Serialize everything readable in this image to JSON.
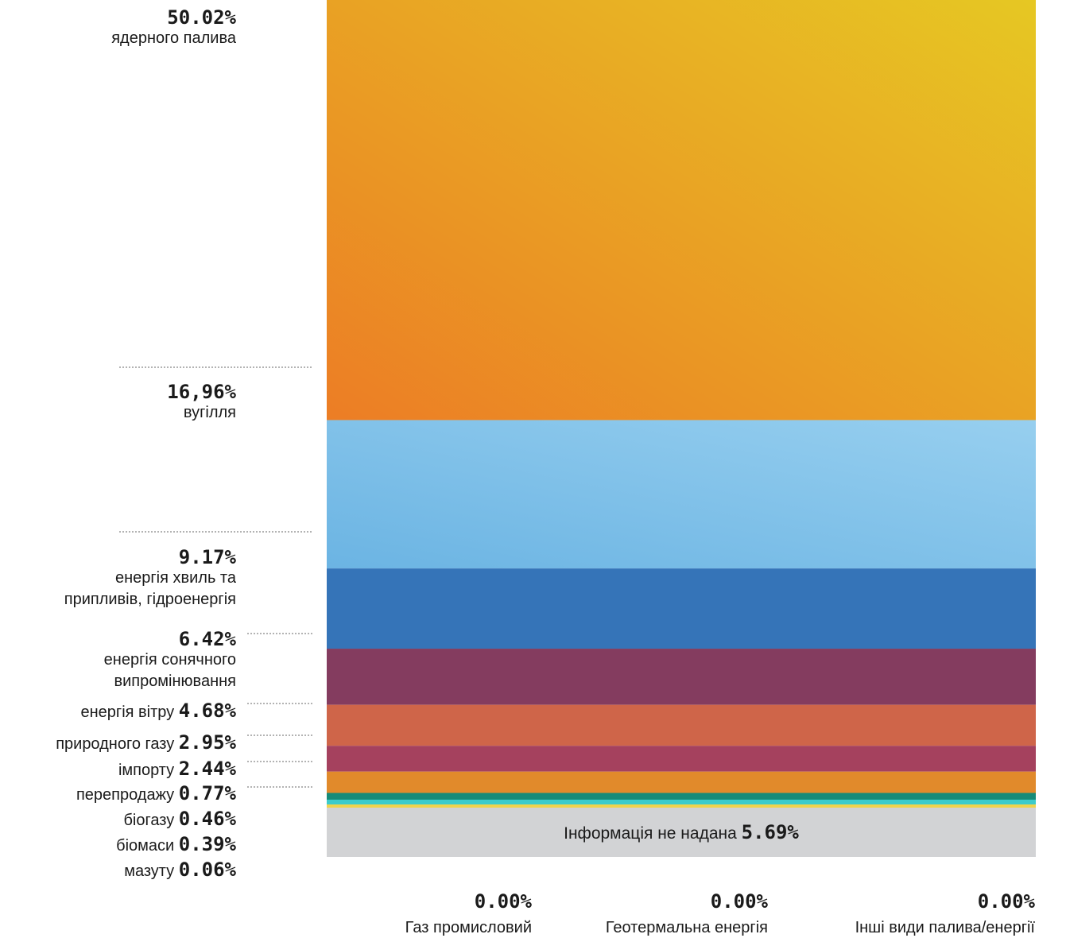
{
  "chart_data": {
    "type": "bar",
    "stacked": true,
    "unit": "%",
    "series": [
      {
        "pct_text": "50.02%",
        "value": 50.02,
        "label_lines": [
          "ядерного палива"
        ],
        "label_style": "stacked",
        "gradient": [
          "#ec7d25",
          "#e6c923"
        ]
      },
      {
        "pct_text": "16,96%",
        "value": 16.96,
        "label_lines": [
          "вугілля"
        ],
        "label_style": "stacked",
        "gradient": [
          "#6bb4e3",
          "#97cfef"
        ]
      },
      {
        "pct_text": "9.17%",
        "value": 9.17,
        "label_lines": [
          "енергія хвиль та",
          "припливів, гідроенергія"
        ],
        "label_style": "stacked",
        "color": "#3574b8"
      },
      {
        "pct_text": "6.42%",
        "value": 6.42,
        "label_lines": [
          "енергія сонячного",
          "випромінювання"
        ],
        "label_style": "stacked",
        "color": "#843c5f"
      },
      {
        "pct_text": "4.68%",
        "value": 4.68,
        "label_lines": [
          "енергія вітру"
        ],
        "label_style": "inline",
        "color": "#cf6549"
      },
      {
        "pct_text": "2.95%",
        "value": 2.95,
        "label_lines": [
          "природного газу"
        ],
        "label_style": "inline",
        "color": "#a5415e"
      },
      {
        "pct_text": "2.44%",
        "value": 2.44,
        "label_lines": [
          "імпорту"
        ],
        "label_style": "inline",
        "color": "#e18a2b"
      },
      {
        "pct_text": "0.77%",
        "value": 0.77,
        "label_lines": [
          "перепродажу"
        ],
        "label_style": "inline",
        "color": "#168b78"
      },
      {
        "pct_text": "0.46%",
        "value": 0.46,
        "label_lines": [
          "біогазу"
        ],
        "label_style": "inline",
        "color": "#3ccbcb"
      },
      {
        "pct_text": "0.39%",
        "value": 0.39,
        "label_lines": [
          "біомаси"
        ],
        "label_style": "inline",
        "color": "#f0d34c"
      },
      {
        "pct_text": "0.06%",
        "value": 0.06,
        "label_lines": [
          "мазуту"
        ],
        "label_style": "inline",
        "color": "#5cb85c"
      }
    ],
    "not_provided": {
      "label": "Інформація не надана",
      "pct_text": "5.69%",
      "value": 5.69,
      "color": "#d2d3d5"
    },
    "zero_items": [
      {
        "pct_text": "0.00%",
        "label": "Газ промисловий"
      },
      {
        "pct_text": "0.00%",
        "label": "Геотермальна енергія"
      },
      {
        "pct_text": "0.00%",
        "label": "Інші види палива/енергії"
      }
    ]
  }
}
